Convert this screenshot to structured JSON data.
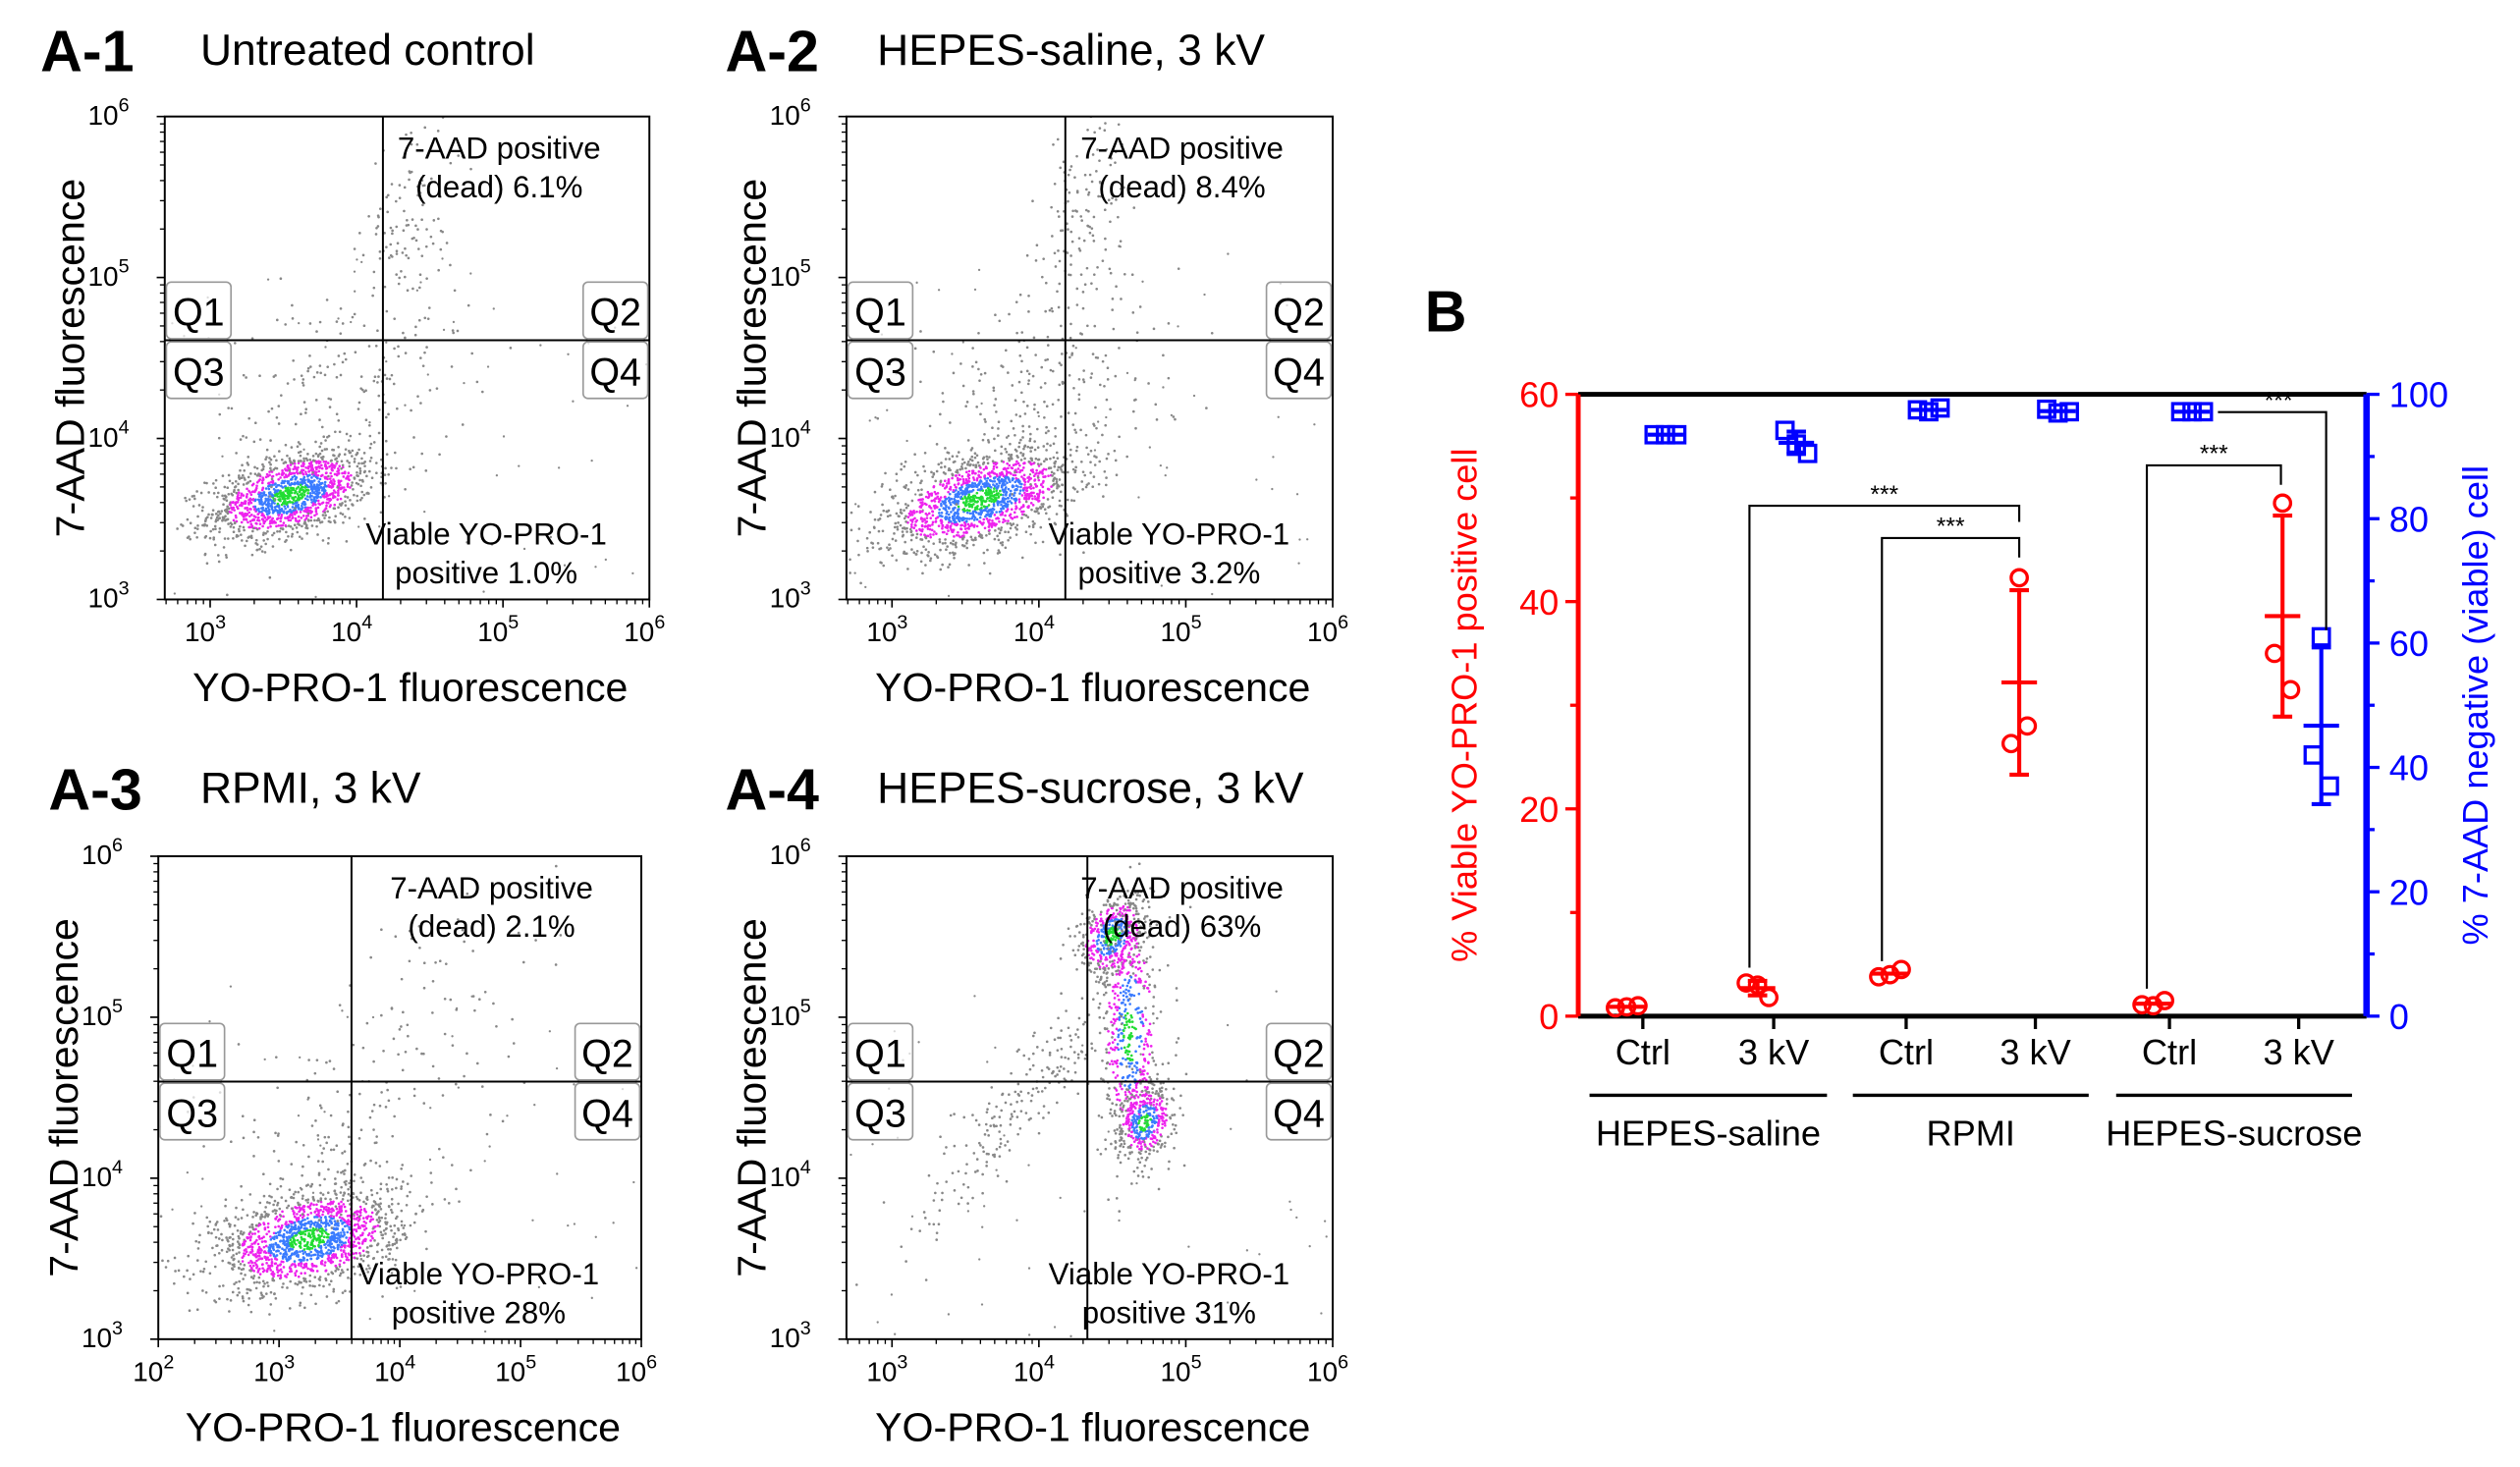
{
  "chart_data": [
    {
      "type": "scatter",
      "id": "A-1",
      "title": "Untreated control",
      "xlabel": "YO-PRO-1 fluorescence",
      "ylabel": "7-AAD fluorescence",
      "x_scale": "log",
      "xlim_log10": [
        2.69,
        6
      ],
      "x_ticks_exp": [
        3,
        4,
        5,
        6
      ],
      "y_scale": "log",
      "ylim_log10": [
        3,
        6
      ],
      "y_ticks_exp": [
        3,
        4,
        5,
        6
      ],
      "tick_base": "10",
      "gate_log10": {
        "x": 4.18,
        "y": 4.61
      },
      "quadrants": [
        "Q1",
        "Q2",
        "Q3",
        "Q4"
      ],
      "dead_label": [
        "7-AAD positive",
        "(dead) 6.1%"
      ],
      "viable_label": [
        "Viable YO-PRO-1",
        "positive 1.0%"
      ],
      "populations": [
        {
          "cx": 3.55,
          "cy": 3.65,
          "sx": 0.28,
          "sy": 0.14,
          "rho": 0.45,
          "n": 1400,
          "density": true
        },
        {
          "cx": 4.35,
          "cy": 5.4,
          "sx": 0.15,
          "sy": 0.35,
          "rho": 0.3,
          "n": 110,
          "density": false
        },
        {
          "cx": 3.9,
          "cy": 4.3,
          "sx": 0.45,
          "sy": 0.35,
          "rho": 0.3,
          "n": 180,
          "density": false
        }
      ]
    },
    {
      "type": "scatter",
      "id": "A-2",
      "title": "HEPES-saline, 3 kV",
      "xlabel": "YO-PRO-1 fluorescence",
      "ylabel": "7-AAD fluorescence",
      "x_scale": "log",
      "xlim_log10": [
        2.69,
        6
      ],
      "x_ticks_exp": [
        3,
        4,
        5,
        6
      ],
      "y_scale": "log",
      "ylim_log10": [
        3,
        6
      ],
      "y_ticks_exp": [
        3,
        4,
        5,
        6
      ],
      "tick_base": "10",
      "gate_log10": {
        "x": 4.18,
        "y": 4.61
      },
      "quadrants": [
        "Q1",
        "Q2",
        "Q3",
        "Q4"
      ],
      "dead_label": [
        "7-AAD positive",
        "(dead) 8.4%"
      ],
      "viable_label": [
        "Viable YO-PRO-1",
        "positive 3.2%"
      ],
      "populations": [
        {
          "cx": 3.6,
          "cy": 3.62,
          "sx": 0.33,
          "sy": 0.16,
          "rho": 0.5,
          "n": 1500,
          "density": true
        },
        {
          "cx": 4.3,
          "cy": 5.3,
          "sx": 0.15,
          "sy": 0.4,
          "rho": 0.3,
          "n": 150,
          "density": false
        },
        {
          "cx": 4.0,
          "cy": 4.3,
          "sx": 0.45,
          "sy": 0.35,
          "rho": 0.3,
          "n": 200,
          "density": false
        }
      ]
    },
    {
      "type": "scatter",
      "id": "A-3",
      "title": "RPMI, 3 kV",
      "xlabel": "YO-PRO-1 fluorescence",
      "ylabel": "7-AAD fluorescence",
      "x_scale": "log",
      "xlim_log10": [
        2,
        6
      ],
      "x_ticks_exp": [
        2,
        3,
        4,
        5,
        6
      ],
      "y_scale": "log",
      "ylim_log10": [
        3,
        6
      ],
      "y_ticks_exp": [
        3,
        4,
        5,
        6
      ],
      "tick_base": "10",
      "gate_log10": {
        "x": 3.6,
        "y": 4.6
      },
      "quadrants": [
        "Q1",
        "Q2",
        "Q3",
        "Q4"
      ],
      "dead_label": [
        "7-AAD positive",
        "(dead) 2.1%"
      ],
      "viable_label": [
        "Viable YO-PRO-1",
        "positive 28%"
      ],
      "populations": [
        {
          "cx": 3.25,
          "cy": 3.62,
          "sx": 0.38,
          "sy": 0.16,
          "rho": 0.35,
          "n": 1500,
          "density": true
        },
        {
          "cx": 4.2,
          "cy": 5.0,
          "sx": 0.4,
          "sy": 0.4,
          "rho": 0.2,
          "n": 80,
          "density": false
        },
        {
          "cx": 3.4,
          "cy": 4.2,
          "sx": 0.55,
          "sy": 0.3,
          "rho": 0.2,
          "n": 150,
          "density": false
        }
      ]
    },
    {
      "type": "scatter",
      "id": "A-4",
      "title": "HEPES-sucrose, 3 kV",
      "xlabel": "YO-PRO-1 fluorescence",
      "ylabel": "7-AAD fluorescence",
      "x_scale": "log",
      "xlim_log10": [
        2.69,
        6
      ],
      "x_ticks_exp": [
        3,
        4,
        5,
        6
      ],
      "y_scale": "log",
      "ylim_log10": [
        3,
        6
      ],
      "y_ticks_exp": [
        3,
        4,
        5,
        6
      ],
      "tick_base": "10",
      "gate_log10": {
        "x": 4.33,
        "y": 4.6
      },
      "quadrants": [
        "Q1",
        "Q2",
        "Q3",
        "Q4"
      ],
      "dead_label": [
        "7-AAD positive",
        "(dead) 63%"
      ],
      "viable_label": [
        "Viable YO-PRO-1",
        "positive 31%"
      ],
      "populations": [
        {
          "cx": 4.5,
          "cy": 5.5,
          "sx": 0.12,
          "sy": 0.13,
          "rho": 0.3,
          "n": 500,
          "density": true
        },
        {
          "cx": 4.62,
          "cy": 4.9,
          "sx": 0.1,
          "sy": 0.4,
          "rho": 0.0,
          "n": 500,
          "density": true
        },
        {
          "cx": 4.72,
          "cy": 4.35,
          "sx": 0.1,
          "sy": 0.12,
          "rho": 0.2,
          "n": 400,
          "density": true
        },
        {
          "cx": 3.9,
          "cy": 4.5,
          "sx": 0.35,
          "sy": 0.4,
          "rho": 0.9,
          "n": 220,
          "density": false
        }
      ]
    },
    {
      "type": "scatter",
      "id": "B",
      "title": "",
      "ylabel": "% Viable YO-PRO-1 positive cell",
      "y2label": "% 7-AAD negative (viable) cell",
      "ylim": [
        0,
        60
      ],
      "yticks": [
        "0",
        "20",
        "40",
        "60"
      ],
      "y2lim": [
        0,
        100
      ],
      "y2ticks": [
        "0",
        "20",
        "40",
        "60",
        "80",
        "100"
      ],
      "categories": [
        "Ctrl",
        "3 kV",
        "Ctrl",
        "3 kV",
        "Ctrl",
        "3 kV"
      ],
      "groups": [
        "HEPES-saline",
        "RPMI",
        "HEPES-sucrose"
      ],
      "series": [
        {
          "name": "% Viable YO-PRO-1 positive cell",
          "axis": "left",
          "color": "#ff0000",
          "marker": "circle",
          "points": [
            [
              0.8,
              0.9,
              1.0
            ],
            [
              3.2,
              3.0,
              1.8
            ],
            [
              3.8,
              4.0,
              4.5
            ],
            [
              42.3,
              26.3,
              28.0
            ],
            [
              1.1,
              1.0,
              1.5
            ],
            [
              49.5,
              35.0,
              31.5
            ]
          ],
          "mean": [
            0.9,
            2.7,
            4.1,
            32.2,
            1.2,
            38.6
          ],
          "sd": [
            0.1,
            0.7,
            0.4,
            8.9,
            0.3,
            9.7
          ]
        },
        {
          "name": "% 7-AAD negative (viable) cell",
          "axis": "right",
          "color": "#0000ff",
          "marker": "square",
          "points": [
            [
              93.5,
              93.5,
              93.5
            ],
            [
              94.2,
              92.0,
              90.5
            ],
            [
              97.5,
              97.2,
              97.8
            ],
            [
              97.6,
              97.0,
              97.2
            ],
            [
              97.2,
              97.2,
              97.2
            ],
            [
              61.0,
              42.0,
              37.0
            ]
          ],
          "mean": [
            93.5,
            92.2,
            97.5,
            97.3,
            97.2,
            46.7
          ],
          "sd": [
            0.1,
            1.8,
            0.3,
            0.3,
            0.1,
            12.6
          ]
        }
      ],
      "significance": [
        {
          "from": 1,
          "to": 3,
          "series": "left",
          "label": "***"
        },
        {
          "from": 2,
          "to": 3,
          "series": "left",
          "label": "***"
        },
        {
          "from": 4,
          "to": 5,
          "series": "left",
          "label": "***"
        },
        {
          "from": 4,
          "to": 5,
          "series": "right",
          "label": "***"
        }
      ]
    }
  ],
  "panel_labels": [
    "A-1",
    "A-2",
    "A-3",
    "A-4",
    "B"
  ]
}
